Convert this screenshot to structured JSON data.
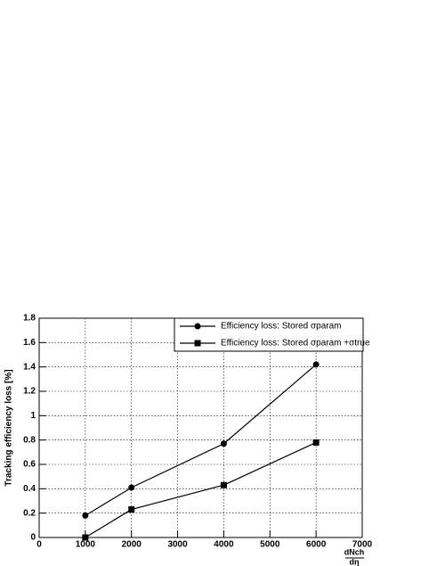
{
  "chart_data": {
    "type": "line",
    "ylabel": "Tracking efficiency loss [%]",
    "xlabel": "dNch",
    "xlabel_denominator": "dη",
    "x": [
      1000,
      2000,
      4000,
      6000
    ],
    "series": [
      {
        "name": "Efficiency loss: Stored σparam",
        "color": "#000000",
        "marker": "circle",
        "values": [
          0.18,
          0.41,
          0.77,
          1.42
        ]
      },
      {
        "name": "Efficiency loss: Stored σparam +σtrue",
        "color": "#000000",
        "marker": "square",
        "values": [
          0.0,
          0.23,
          0.43,
          0.78
        ]
      }
    ],
    "xlim": [
      0,
      7000
    ],
    "xticks": [
      0,
      1000,
      2000,
      3000,
      4000,
      5000,
      6000,
      7000
    ],
    "ylim": [
      0,
      1.8
    ],
    "yticks": [
      0,
      0.2,
      0.4,
      0.6,
      0.8,
      1,
      1.2,
      1.4,
      1.6,
      1.8
    ],
    "grid": true,
    "legend": "top-right"
  }
}
